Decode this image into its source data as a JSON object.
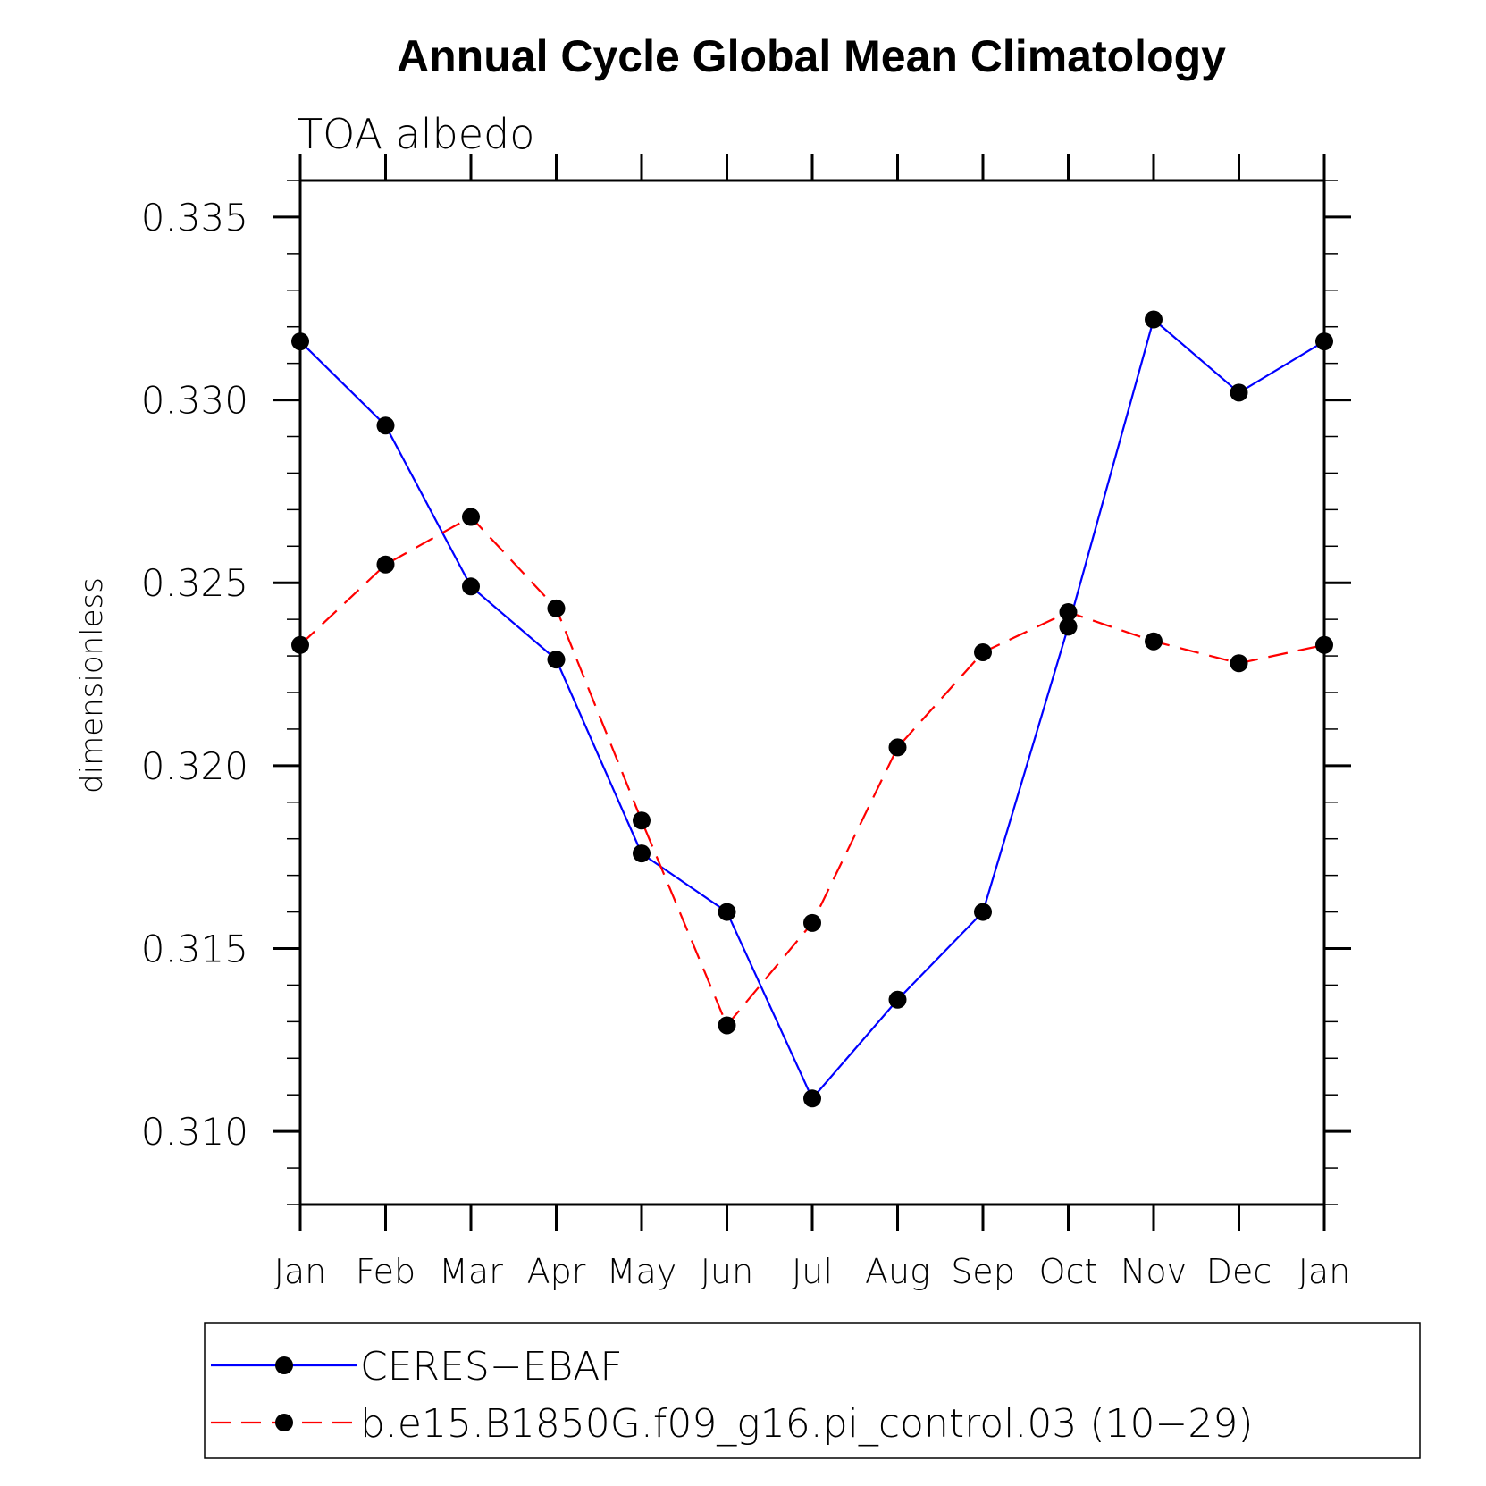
{
  "chart_data": {
    "type": "line",
    "title": "Annual Cycle Global Mean Climatology",
    "subtitle": "TOA albedo",
    "ylabel": "dimensionless",
    "xlabel": "",
    "categories": [
      "Jan",
      "Feb",
      "Mar",
      "Apr",
      "May",
      "Jun",
      "Jul",
      "Aug",
      "Sep",
      "Oct",
      "Nov",
      "Dec",
      "Jan"
    ],
    "ylim": [
      0.308,
      0.336
    ],
    "yticks": [
      0.31,
      0.315,
      0.32,
      0.325,
      0.33,
      0.335
    ],
    "ytick_labels": [
      "0.310",
      "0.315",
      "0.320",
      "0.325",
      "0.330",
      "0.335"
    ],
    "grid": false,
    "legend_position": "bottom",
    "series": [
      {
        "name": "CERES−EBAF",
        "color": "#0000ff",
        "line_style": "solid",
        "marker": "filled-circle",
        "values": [
          0.3316,
          0.3293,
          0.3249,
          0.3229,
          0.3176,
          0.316,
          0.3109,
          0.3136,
          0.316,
          0.3238,
          0.3322,
          0.3302,
          0.3316
        ]
      },
      {
        "name": "b.e15.B1850G.f09_g16.pi_control.03 (10−29)",
        "color": "#ff0000",
        "line_style": "dashed",
        "marker": "filled-circle",
        "values": [
          0.3233,
          0.3255,
          0.3268,
          0.3243,
          0.3185,
          0.3129,
          0.3157,
          0.3205,
          0.3231,
          0.3242,
          0.3234,
          0.3228,
          0.3233
        ]
      }
    ]
  }
}
